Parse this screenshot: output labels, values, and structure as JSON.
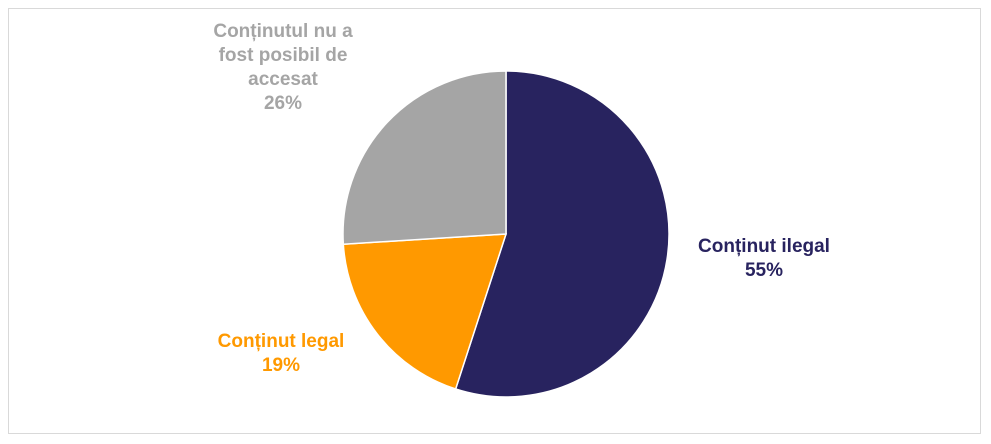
{
  "chart_data": {
    "type": "pie",
    "slices": [
      {
        "label": "Conținut ilegal",
        "value": 55,
        "value_label": "55%",
        "color": "#28235f"
      },
      {
        "label": "Conținut legal",
        "value": 19,
        "value_label": "19%",
        "color": "#ff9900"
      },
      {
        "label": "Conținutul nu a fost posibil de accesat",
        "value": 26,
        "value_label": "26%",
        "color": "#a5a5a5"
      }
    ],
    "label_lines": [
      [
        "Conținut ilegal",
        "55%"
      ],
      [
        "Conținut legal",
        "19%"
      ],
      [
        "Conținutul nu a",
        "fost posibil de",
        "accesat",
        "26%"
      ]
    ],
    "start_angle_deg": 0,
    "direction": "clockwise",
    "legend": "none"
  }
}
